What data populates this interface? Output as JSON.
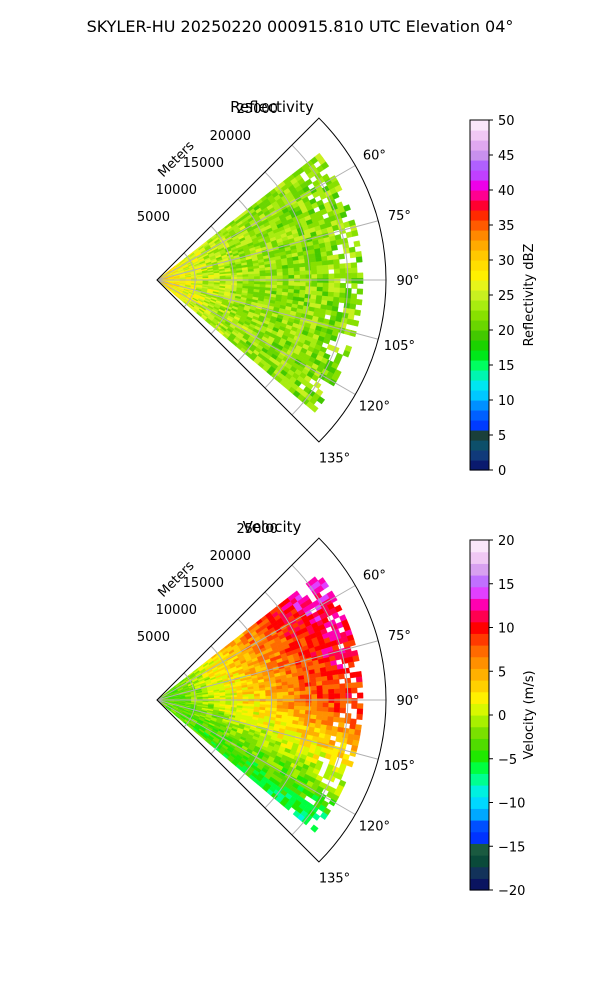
{
  "figure": {
    "suptitle": "SKYLER-HU  20250220  000915.810 UTC Elevation 04°"
  },
  "chart_data": [
    {
      "type": "heatmap",
      "projection": "polar-sector",
      "title": "Reflectivity",
      "radial_label": "Meters",
      "radial_ticks": [
        5000,
        10000,
        15000,
        20000,
        25000
      ],
      "radial_tick_labels": [
        "5000",
        "10000",
        "15000",
        "20000",
        "25000"
      ],
      "rlim": [
        0,
        30000
      ],
      "theta_ticks_deg": [
        60,
        75,
        90,
        105,
        120,
        135
      ],
      "theta_tick_labels": [
        "60°",
        "75°",
        "90°",
        "105°",
        "120°",
        "135°"
      ],
      "theta_range_deg": [
        45,
        135
      ],
      "data_coverage": {
        "azimuth_deg": [
          52,
          130
        ],
        "max_range": 27000,
        "min_range": 0
      },
      "field_description": "mostly 20-28 dBZ, near-radar values 26-32 dBZ",
      "value_model": {
        "near_max": 31,
        "far_mean": 22,
        "noise": 3
      },
      "colorbar": {
        "label": "Reflectivity dBZ",
        "vmin": 0,
        "vmax": 50,
        "ticks": [
          0,
          5,
          10,
          15,
          20,
          25,
          30,
          35,
          40,
          45,
          50
        ],
        "tick_labels": [
          "0",
          "5",
          "10",
          "15",
          "20",
          "25",
          "30",
          "35",
          "40",
          "45",
          "50"
        ],
        "cmap": "NWSRef",
        "colors": [
          "#0a1a6e",
          "#103a7a",
          "#0d4f6a",
          "#1a3f3a",
          "#003bff",
          "#0060ff",
          "#0090ff",
          "#00c8ff",
          "#00e6f0",
          "#00f5b0",
          "#00ff60",
          "#00e81a",
          "#1bd200",
          "#43c800",
          "#6ad600",
          "#88e000",
          "#a8ec10",
          "#c8f020",
          "#e6f51a",
          "#fff000",
          "#ffdd00",
          "#ffc800",
          "#ffaa00",
          "#ff8800",
          "#ff5a00",
          "#ff2a00",
          "#ff0030",
          "#ff0090",
          "#ee00e8",
          "#c040ff",
          "#b060ff",
          "#c890ee",
          "#e0a8f0",
          "#f0c8f4",
          "#fae6fa"
        ]
      }
    },
    {
      "type": "heatmap",
      "projection": "polar-sector",
      "title": "Velocity",
      "radial_label": "Meters",
      "radial_ticks": [
        5000,
        10000,
        15000,
        20000,
        25000
      ],
      "radial_tick_labels": [
        "5000",
        "10000",
        "15000",
        "20000",
        "25000"
      ],
      "rlim": [
        0,
        30000
      ],
      "theta_ticks_deg": [
        60,
        75,
        90,
        105,
        120,
        135
      ],
      "theta_tick_labels": [
        "60°",
        "75°",
        "90°",
        "105°",
        "120°",
        "135°"
      ],
      "theta_range_deg": [
        45,
        135
      ],
      "data_coverage": {
        "azimuth_deg": [
          52,
          130
        ],
        "max_range": 27000,
        "min_range": 0
      },
      "field_description": "near radar about -3 m/s, mid range 0-5 m/s, far north 12-15 m/s, far south -7 m/s",
      "value_model": {
        "near": -3,
        "north_far": 13,
        "south_far": -7,
        "center_far": 9,
        "noise": 2
      },
      "colorbar": {
        "label": "Velocity (m/s)",
        "vmin": -20,
        "vmax": 20,
        "ticks": [
          -20,
          -15,
          -10,
          -5,
          0,
          5,
          10,
          15,
          20
        ],
        "tick_labels": [
          "−20",
          "−15",
          "−10",
          "−5",
          "0",
          "5",
          "10",
          "15",
          "20"
        ],
        "cmap": "NWSVel",
        "colors": [
          "#0a1460",
          "#12325a",
          "#0a4a3a",
          "#1a5a40",
          "#0033ff",
          "#0050ff",
          "#00a8ff",
          "#00d8ff",
          "#00f0e0",
          "#00ff90",
          "#00ff40",
          "#20e800",
          "#50dc00",
          "#7ae000",
          "#a8f000",
          "#d8f800",
          "#fff000",
          "#ffd000",
          "#ffb000",
          "#ff9000",
          "#ff6a00",
          "#ff3a00",
          "#ff0000",
          "#ff0050",
          "#ff00b0",
          "#e040ff",
          "#c070ff",
          "#d8a0f0",
          "#f0c8f4",
          "#fae6fa"
        ]
      }
    }
  ]
}
